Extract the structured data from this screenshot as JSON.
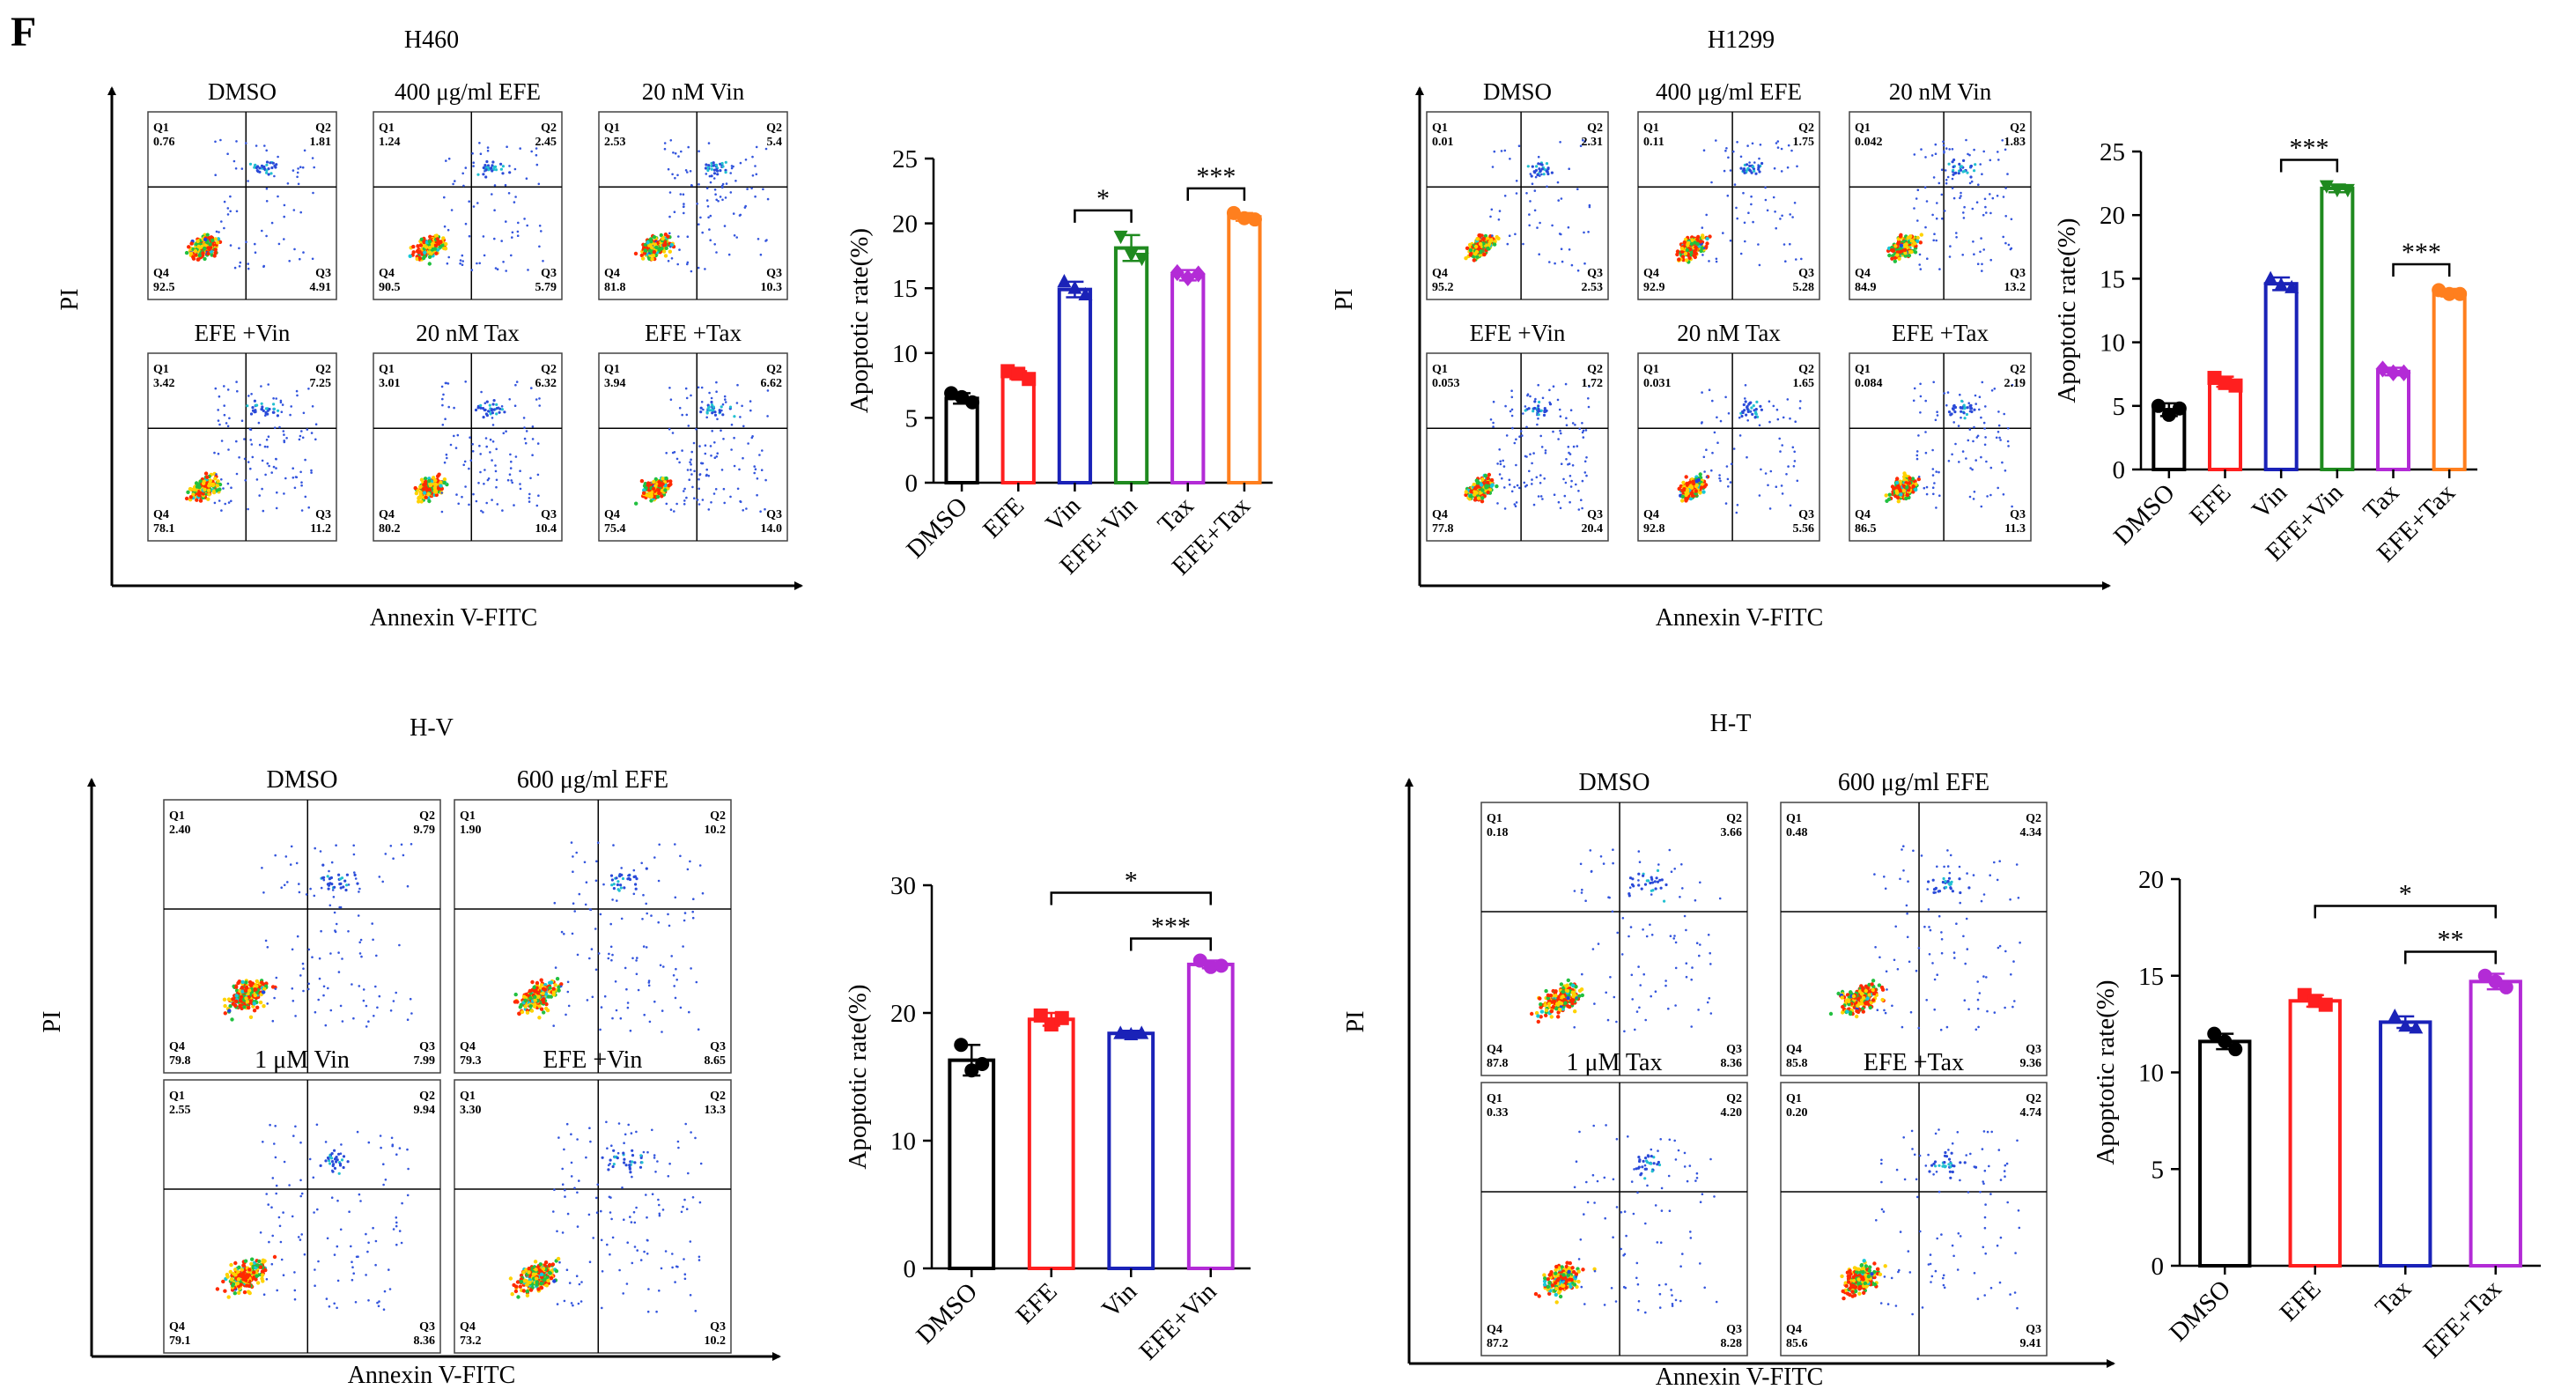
{
  "figure": {
    "panel_letter": "F"
  },
  "axis_labels": {
    "x": "Annexin V-FITC",
    "y": "PI"
  },
  "colors": {
    "DMSO": "#000000",
    "EFE": "#ff1f1f",
    "Vin": "#1a22b8",
    "EFE+Vin": "#1f8a1f",
    "Tax": "#b32bd6",
    "EFE+Tax": "#ff7f1e",
    "H-V:EFE+Vin": "#b32bd6",
    "H-T:Tax": "#1a22b8",
    "H-T:EFE+Tax": "#b32bd6"
  },
  "panels": [
    {
      "title": "H460",
      "flow": [
        {
          "title": "DMSO",
          "q1": "0.76",
          "q2": "1.81",
          "q3": "4.91",
          "q4": "92.5"
        },
        {
          "title": "400 μg/ml EFE",
          "q1": "1.24",
          "q2": "2.45",
          "q3": "5.79",
          "q4": "90.5"
        },
        {
          "title": "20 nM Vin",
          "q1": "2.53",
          "q2": "5.4",
          "q3": "10.3",
          "q4": "81.8"
        },
        {
          "title": "EFE +Vin",
          "q1": "3.42",
          "q2": "7.25",
          "q3": "11.2",
          "q4": "78.1"
        },
        {
          "title": "20 nM Tax",
          "q1": "3.01",
          "q2": "6.32",
          "q3": "10.4",
          "q4": "80.2"
        },
        {
          "title": "EFE +Tax",
          "q1": "3.94",
          "q2": "6.62",
          "q3": "14.0",
          "q4": "75.4"
        }
      ]
    },
    {
      "title": "H1299",
      "flow": [
        {
          "title": "DMSO",
          "q1": "0.01",
          "q2": "2.31",
          "q3": "2.53",
          "q4": "95.2"
        },
        {
          "title": "400 μg/ml EFE",
          "q1": "0.11",
          "q2": "1.75",
          "q3": "5.28",
          "q4": "92.9"
        },
        {
          "title": "20 nM Vin",
          "q1": "0.042",
          "q2": "1.83",
          "q3": "13.2",
          "q4": "84.9"
        },
        {
          "title": "EFE +Vin",
          "q1": "0.053",
          "q2": "1.72",
          "q3": "20.4",
          "q4": "77.8"
        },
        {
          "title": "20 nM Tax",
          "q1": "0.031",
          "q2": "1.65",
          "q3": "5.56",
          "q4": "92.8"
        },
        {
          "title": "EFE +Tax",
          "q1": "0.084",
          "q2": "2.19",
          "q3": "11.3",
          "q4": "86.5"
        }
      ]
    },
    {
      "title": "H-V",
      "flow": [
        {
          "title": "DMSO",
          "q1": "2.40",
          "q2": "9.79",
          "q3": "7.99",
          "q4": "79.8"
        },
        {
          "title": "600 μg/ml EFE",
          "q1": "1.90",
          "q2": "10.2",
          "q3": "8.65",
          "q4": "79.3"
        },
        {
          "title": "1 μM  Vin",
          "q1": "2.55",
          "q2": "9.94",
          "q3": "8.36",
          "q4": "79.1"
        },
        {
          "title": "EFE +Vin",
          "q1": "3.30",
          "q2": "13.3",
          "q3": "10.2",
          "q4": "73.2"
        }
      ]
    },
    {
      "title": "H-T",
      "flow": [
        {
          "title": "DMSO",
          "q1": "0.18",
          "q2": "3.66",
          "q3": "8.36",
          "q4": "87.8"
        },
        {
          "title": "600 μg/ml EFE",
          "q1": "0.48",
          "q2": "4.34",
          "q3": "9.36",
          "q4": "85.8"
        },
        {
          "title": "1 μM  Tax",
          "q1": "0.33",
          "q2": "4.20",
          "q3": "8.28",
          "q4": "87.2"
        },
        {
          "title": "EFE +Tax",
          "q1": "0.20",
          "q2": "4.74",
          "q3": "9.41",
          "q4": "85.6"
        }
      ]
    }
  ],
  "chart_data": [
    {
      "type": "bar",
      "panel": "H460",
      "ylabel": "Apoptotic rate(%)",
      "ylim": [
        0,
        25
      ],
      "yticks": [
        0,
        5,
        10,
        15,
        20,
        25
      ],
      "categories": [
        "DMSO",
        "EFE",
        "Vin",
        "EFE+Vin",
        "Tax",
        "EFE+Tax"
      ],
      "values": [
        6.5,
        8.3,
        14.9,
        18.1,
        16.0,
        20.5
      ],
      "errors": [
        0.4,
        0.3,
        0.6,
        1.0,
        0.4,
        0.3
      ],
      "points": [
        [
          6.9,
          6.6,
          6.2
        ],
        [
          8.6,
          8.4,
          8.0
        ],
        [
          15.5,
          15.0,
          14.5
        ],
        [
          19.0,
          17.6,
          17.3
        ],
        [
          16.2,
          15.8,
          16.1
        ],
        [
          20.8,
          20.4,
          20.3
        ]
      ],
      "markers": [
        "circle",
        "square",
        "triangle-up",
        "triangle-down",
        "diamond",
        "hexagon"
      ],
      "significance": [
        {
          "from": "Vin",
          "to": "EFE+Vin",
          "label": "*"
        },
        {
          "from": "Tax",
          "to": "EFE+Tax",
          "label": "***"
        }
      ]
    },
    {
      "type": "bar",
      "panel": "H1299",
      "ylabel": "Apoptotic rate(%)",
      "ylim": [
        0,
        25
      ],
      "yticks": [
        0,
        5,
        10,
        15,
        20,
        25
      ],
      "categories": [
        "DMSO",
        "EFE",
        "Vin",
        "EFE+Vin",
        "Tax",
        "EFE+Tax"
      ],
      "values": [
        4.7,
        6.9,
        14.6,
        22.1,
        7.7,
        13.9
      ],
      "errors": [
        0.5,
        0.4,
        0.5,
        0.3,
        0.3,
        0.3
      ],
      "points": [
        [
          5.0,
          4.3,
          4.8
        ],
        [
          7.2,
          6.8,
          6.6
        ],
        [
          15.0,
          14.5,
          14.3
        ],
        [
          22.3,
          22.0,
          22.0
        ],
        [
          7.9,
          7.6,
          7.6
        ],
        [
          14.1,
          13.8,
          13.8
        ]
      ],
      "markers": [
        "circle",
        "square",
        "triangle-up",
        "triangle-down",
        "diamond",
        "hexagon"
      ],
      "significance": [
        {
          "from": "Vin",
          "to": "EFE+Vin",
          "label": "***"
        },
        {
          "from": "Tax",
          "to": "EFE+Tax",
          "label": "***"
        }
      ]
    },
    {
      "type": "bar",
      "panel": "H-V",
      "ylabel": "Apoptotic rate(%)",
      "ylim": [
        0,
        30
      ],
      "yticks": [
        0,
        10,
        20,
        30
      ],
      "categories": [
        "DMSO",
        "EFE",
        "Vin",
        "EFE+Vin"
      ],
      "values": [
        16.3,
        19.5,
        18.4,
        23.8
      ],
      "errors": [
        1.2,
        0.5,
        0.2,
        0.3
      ],
      "points": [
        [
          17.5,
          15.5,
          16.0
        ],
        [
          19.8,
          19.1,
          19.6
        ],
        [
          18.4,
          18.3,
          18.4
        ],
        [
          24.1,
          23.6,
          23.7
        ]
      ],
      "markers": [
        "circle",
        "square",
        "triangle-up",
        "circle"
      ],
      "significance": [
        {
          "from": "EFE",
          "to": "EFE+Vin",
          "label": "*"
        },
        {
          "from": "Vin",
          "to": "EFE+Vin",
          "label": "***"
        }
      ]
    },
    {
      "type": "bar",
      "panel": "H-T",
      "ylabel": "Apoptotic rate(%)",
      "ylim": [
        0,
        20
      ],
      "yticks": [
        0,
        5,
        10,
        15,
        20
      ],
      "categories": [
        "DMSO",
        "EFE",
        "Tax",
        "EFE+Tax"
      ],
      "values": [
        11.6,
        13.7,
        12.6,
        14.7
      ],
      "errors": [
        0.4,
        0.3,
        0.3,
        0.4
      ],
      "points": [
        [
          12.0,
          11.6,
          11.2
        ],
        [
          14.0,
          13.7,
          13.5
        ],
        [
          12.9,
          12.4,
          12.3
        ],
        [
          15.0,
          14.7,
          14.4
        ]
      ],
      "markers": [
        "circle",
        "square",
        "triangle-up",
        "circle"
      ],
      "significance": [
        {
          "from": "EFE",
          "to": "EFE+Tax",
          "label": "*"
        },
        {
          "from": "Tax",
          "to": "EFE+Tax",
          "label": "**"
        }
      ]
    }
  ]
}
